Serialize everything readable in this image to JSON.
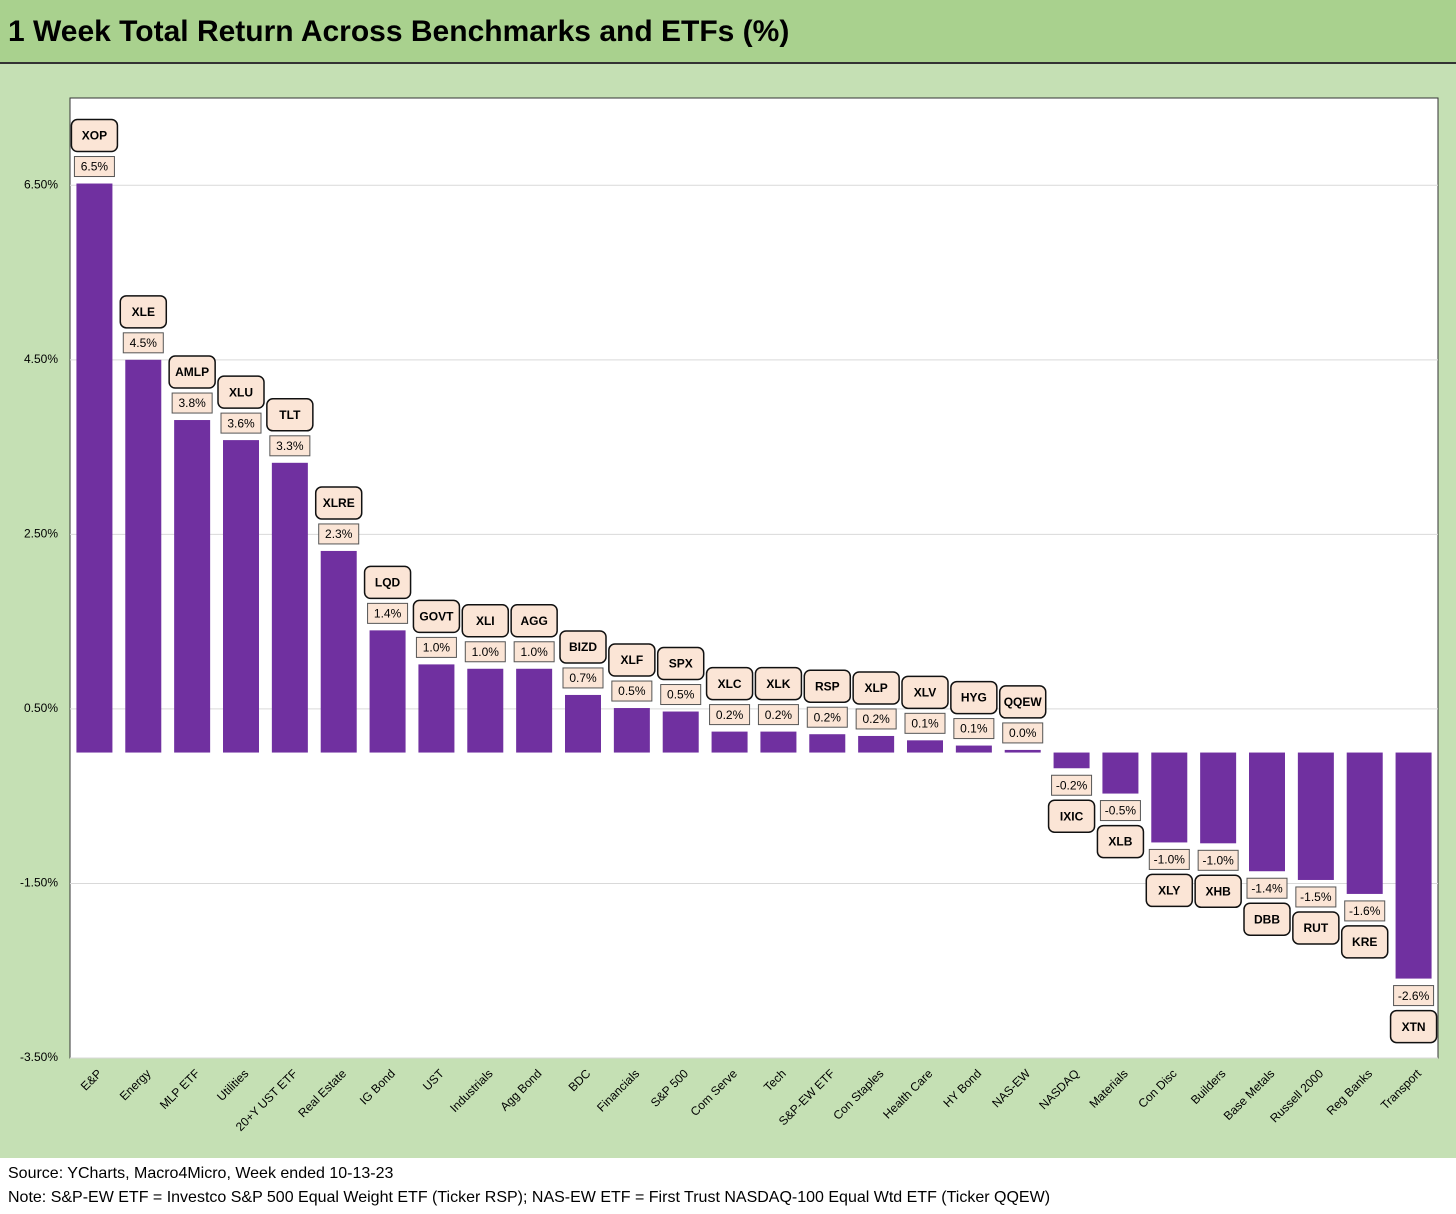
{
  "chart_data": {
    "type": "bar",
    "title": "1 Week Total Return Across Benchmarks and ETFs (%)",
    "categories": [
      "E&P",
      "Energy",
      "MLP ETF",
      "Utilities",
      "20+Y UST ETF",
      "Real Estate",
      "IG Bond",
      "UST",
      "Industrials",
      "Agg Bond",
      "BDC",
      "Financials",
      "S&P 500",
      "Com Serve",
      "Tech",
      "S&P-EW ETF",
      "Con Staples",
      "Health Care",
      "HY Bond",
      "NAS-EW",
      "NASDAQ",
      "Materials",
      "Con Disc",
      "Builders",
      "Base Metals",
      "Russell 2000",
      "Reg Banks",
      "Transport"
    ],
    "tickers": [
      "XOP",
      "XLE",
      "AMLP",
      "XLU",
      "TLT",
      "XLRE",
      "LQD",
      "GOVT",
      "XLI",
      "AGG",
      "BIZD",
      "XLF",
      "SPX",
      "XLC",
      "XLK",
      "RSP",
      "XLP",
      "XLV",
      "HYG",
      "QQEW",
      "IXIC",
      "XLB",
      "XLY",
      "XHB",
      "DBB",
      "RUT",
      "KRE",
      "XTN"
    ],
    "values": [
      6.52,
      4.5,
      3.81,
      3.58,
      3.32,
      2.31,
      1.4,
      1.01,
      0.96,
      0.96,
      0.66,
      0.51,
      0.47,
      0.24,
      0.24,
      0.21,
      0.19,
      0.14,
      0.08,
      0.03,
      -0.18,
      -0.47,
      -1.03,
      -1.04,
      -1.36,
      -1.46,
      -1.62,
      -2.59
    ],
    "value_labels": [
      "6.5%",
      "4.5%",
      "3.8%",
      "3.6%",
      "3.3%",
      "2.3%",
      "1.4%",
      "1.0%",
      "1.0%",
      "1.0%",
      "0.7%",
      "0.5%",
      "0.5%",
      "0.2%",
      "0.2%",
      "0.2%",
      "0.2%",
      "0.1%",
      "0.1%",
      "0.0%",
      "-0.2%",
      "-0.5%",
      "-1.0%",
      "-1.0%",
      "-1.4%",
      "-1.5%",
      "-1.6%",
      "-2.6%"
    ],
    "color": "#7030a0",
    "ylim": [
      -3.5,
      7.5
    ],
    "yticks": [
      {
        "value": -3.5,
        "label": "-3.50%"
      },
      {
        "value": -1.5,
        "label": "-1.50%"
      },
      {
        "value": 0.5,
        "label": "0.50%"
      },
      {
        "value": 2.5,
        "label": "2.50%"
      },
      {
        "value": 4.5,
        "label": "4.50%"
      },
      {
        "value": 6.5,
        "label": "6.50%"
      }
    ],
    "grid": true
  },
  "footer": {
    "source": "Source: YCharts, Macro4Micro, Week ended 10-13-23",
    "note": "Note: S&P-EW ETF = Investco S&P 500 Equal Weight ETF (Ticker RSP); NAS-EW ETF = First Trust NASDAQ-100 Equal Wtd ETF (Ticker QQEW)"
  }
}
